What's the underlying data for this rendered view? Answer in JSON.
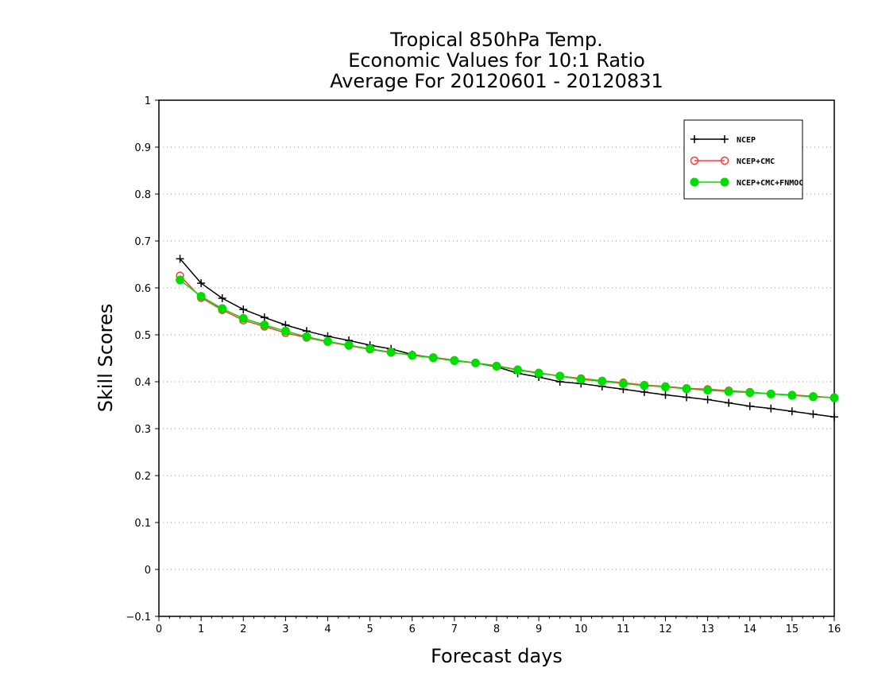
{
  "chart_data": {
    "type": "line",
    "title": [
      "Tropical 850hPa Temp.",
      "Economic Values for 10:1 Ratio",
      "Average For 20120601 - 20120831"
    ],
    "xlabel": "Forecast days",
    "ylabel": "Skill Scores",
    "xlim": [
      0,
      16
    ],
    "ylim": [
      -0.1,
      1
    ],
    "xticks": [
      0,
      1,
      2,
      3,
      4,
      5,
      6,
      7,
      8,
      9,
      10,
      11,
      12,
      13,
      14,
      15,
      16
    ],
    "xtick_labels": [
      "0",
      "1",
      "2",
      "3",
      "4",
      "5",
      "6",
      "7",
      "8",
      "9",
      "10",
      "11",
      "12",
      "13",
      "14",
      "15",
      "16"
    ],
    "yticks": [
      -0.1,
      0,
      0.1,
      0.2,
      0.3,
      0.4,
      0.5,
      0.6,
      0.7,
      0.8,
      0.9,
      1
    ],
    "ytick_labels": [
      "−0.1",
      "0",
      "0.1",
      "0.2",
      "0.3",
      "0.4",
      "0.5",
      "0.6",
      "0.7",
      "0.8",
      "0.9",
      "1"
    ],
    "grid": "horizontal dotted",
    "legend_position": "top-right",
    "x": [
      0.5,
      1,
      1.5,
      2,
      2.5,
      3,
      3.5,
      4,
      4.5,
      5,
      5.5,
      6,
      6.5,
      7,
      7.5,
      8,
      8.5,
      9,
      9.5,
      10,
      10.5,
      11,
      11.5,
      12,
      12.5,
      13,
      13.5,
      14,
      14.5,
      15,
      15.5,
      16
    ],
    "series": [
      {
        "name": "NCEP",
        "color": "#000000",
        "marker": "plus",
        "values": [
          0.662,
          0.61,
          0.578,
          0.554,
          0.537,
          0.521,
          0.508,
          0.497,
          0.488,
          0.478,
          0.47,
          0.458,
          0.451,
          0.445,
          0.44,
          0.432,
          0.418,
          0.41,
          0.4,
          0.396,
          0.39,
          0.384,
          0.378,
          0.372,
          0.367,
          0.362,
          0.355,
          0.348,
          0.343,
          0.337,
          0.331,
          0.325
        ]
      },
      {
        "name": "NCEP+CMC",
        "color": "#ff3b3b",
        "marker": "open-circle",
        "values": [
          0.626,
          0.579,
          0.553,
          0.531,
          0.518,
          0.504,
          0.494,
          0.485,
          0.477,
          0.469,
          0.462,
          0.457,
          0.452,
          0.446,
          0.44,
          0.434,
          0.426,
          0.419,
          0.412,
          0.407,
          0.402,
          0.398,
          0.393,
          0.39,
          0.386,
          0.384,
          0.381,
          0.378,
          0.374,
          0.372,
          0.369,
          0.366
        ]
      },
      {
        "name": "NCEP+CMC+FNMOC",
        "color": "#00dd00",
        "marker": "filled-circle",
        "values": [
          0.617,
          0.582,
          0.556,
          0.535,
          0.521,
          0.508,
          0.496,
          0.486,
          0.478,
          0.47,
          0.463,
          0.456,
          0.451,
          0.445,
          0.44,
          0.433,
          0.425,
          0.418,
          0.412,
          0.405,
          0.401,
          0.396,
          0.392,
          0.389,
          0.385,
          0.382,
          0.379,
          0.377,
          0.374,
          0.371,
          0.368,
          0.366
        ]
      }
    ]
  }
}
